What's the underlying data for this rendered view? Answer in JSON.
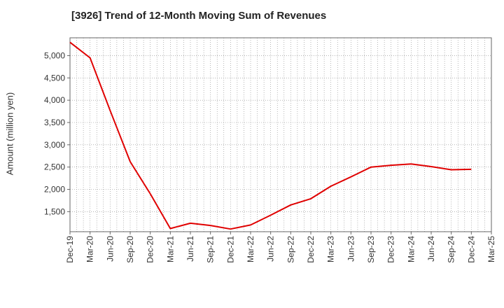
{
  "chart_data": {
    "type": "line",
    "title": "[3926]  Trend of 12-Month Moving Sum of Revenues",
    "xlabel": "",
    "ylabel": "Amount (million yen)",
    "x_tick_labels": [
      "Dec-19",
      "Mar-20",
      "Jun-20",
      "Sep-20",
      "Dec-20",
      "Mar-21",
      "Jun-21",
      "Sep-21",
      "Dec-21",
      "Mar-22",
      "Jun-22",
      "Sep-22",
      "Dec-22",
      "Mar-23",
      "Jun-23",
      "Sep-23",
      "Dec-23",
      "Mar-24",
      "Jun-24",
      "Sep-24",
      "Dec-24",
      "Mar-25"
    ],
    "y_ticks": [
      1500,
      2000,
      2500,
      3000,
      3500,
      4000,
      4500,
      5000
    ],
    "ylim": [
      1050,
      5400
    ],
    "grid": true,
    "series": [
      {
        "color": "#e00000",
        "x": [
          "Dec-19",
          "Mar-20",
          "Jun-20",
          "Sep-20",
          "Dec-20",
          "Mar-21",
          "Jun-21",
          "Sep-21",
          "Dec-21",
          "Mar-22",
          "Jun-22",
          "Sep-22",
          "Dec-22",
          "Mar-23",
          "Jun-23",
          "Sep-23",
          "Dec-23",
          "Mar-24",
          "Jun-24",
          "Sep-24",
          "Dec-24"
        ],
        "values": [
          5300,
          4950,
          3770,
          2620,
          1900,
          1120,
          1240,
          1190,
          1110,
          1200,
          1420,
          1650,
          1790,
          2070,
          2280,
          2500,
          2540,
          2570,
          2510,
          2440,
          2450
        ]
      }
    ]
  }
}
